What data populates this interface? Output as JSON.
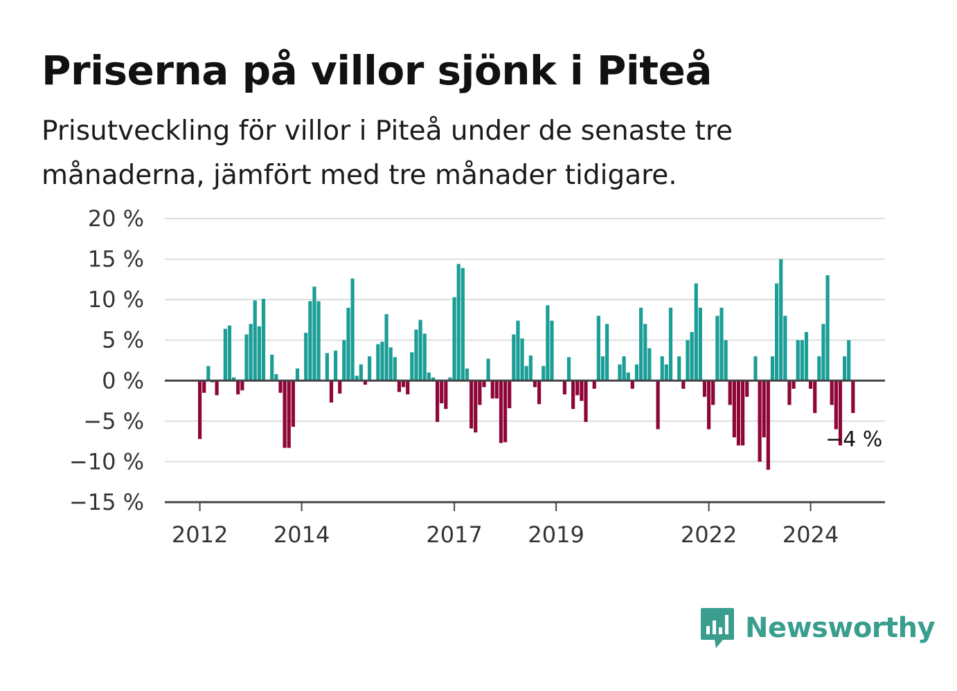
{
  "title": "Priserna på villor sjönk i Piteå",
  "subtitle": "Prisutveckling för villor i Piteå under de senaste tre månaderna, jämfört med tre månader tidigare.",
  "brand": {
    "name": "Newsworthy",
    "logo_icon": "bar-chart-speech-bubble-icon",
    "color": "#3a9e8f"
  },
  "chart_data": {
    "type": "bar",
    "ylim": [
      -15,
      20
    ],
    "yticks": [
      -15,
      -10,
      -5,
      0,
      5,
      10,
      15,
      20
    ],
    "ytick_labels": [
      "−15 %",
      "−10 %",
      "−5 %",
      "0 %",
      "5 %",
      "10 %",
      "15 %",
      "20 %"
    ],
    "xticks": [
      {
        "label": "2012",
        "x": "2012-01"
      },
      {
        "label": "2014",
        "x": "2014-01"
      },
      {
        "label": "2017",
        "x": "2017-01"
      },
      {
        "label": "2019",
        "x": "2019-01"
      },
      {
        "label": "2022",
        "x": "2022-01"
      },
      {
        "label": "2024",
        "x": "2024-01"
      }
    ],
    "positive_color": "#1a9e96",
    "negative_color": "#8e0638",
    "grid": true,
    "end_label": "−4 %",
    "x_start": "2012-01",
    "x_step_months": 1,
    "values": [
      -7.2,
      -1.5,
      1.8,
      -0.2,
      -1.8,
      -0.1,
      6.4,
      6.8,
      0.4,
      -1.7,
      -1.2,
      5.7,
      7,
      9.9,
      6.7,
      10.1,
      0,
      3.2,
      0.8,
      -1.5,
      -8.3,
      -8.3,
      -5.7,
      1.5,
      0,
      5.9,
      9.8,
      11.6,
      9.8,
      0,
      3.4,
      -2.7,
      3.7,
      -1.6,
      5,
      9,
      12.6,
      0.6,
      2,
      -0.5,
      3,
      0,
      4.5,
      4.8,
      8.2,
      4.1,
      2.9,
      -1.4,
      -0.8,
      -1.7,
      3.5,
      6.3,
      7.5,
      5.8,
      1,
      0.4,
      -5.1,
      -2.8,
      -3.5,
      0.4,
      10.3,
      14.4,
      13.9,
      1.5,
      -5.9,
      -6.4,
      -3,
      -0.8,
      2.7,
      -2.2,
      -2.2,
      -7.7,
      -7.6,
      -3.4,
      5.7,
      7.4,
      5.2,
      1.8,
      3.1,
      -0.8,
      -2.9,
      1.8,
      9.3,
      7.4,
      0,
      -0.1,
      -1.7,
      2.9,
      -3.5,
      -1.8,
      -2.5,
      -5.1,
      -0.1,
      -1,
      8,
      3,
      7,
      0,
      0,
      2,
      3,
      1,
      -1,
      2,
      9,
      7,
      4,
      0,
      -6,
      3,
      2,
      9,
      0,
      3,
      -1,
      5,
      6,
      12,
      9,
      -2,
      -6,
      -3,
      8,
      9,
      5,
      -3,
      -7,
      -8,
      -8,
      -2,
      0,
      3,
      -10,
      -7,
      -11,
      3,
      12,
      15,
      8,
      -3,
      -1,
      5,
      5,
      6,
      -1,
      -4,
      3,
      7,
      13,
      -3,
      -6,
      -8,
      3,
      5,
      -4
    ]
  }
}
